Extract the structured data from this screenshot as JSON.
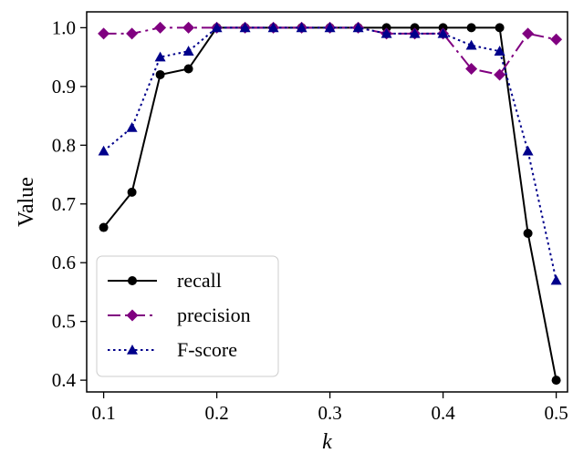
{
  "chart_data": {
    "type": "line",
    "xlabel": "k",
    "ylabel": "Value",
    "xlim": [
      0.085,
      0.51
    ],
    "ylim": [
      0.38,
      1.027
    ],
    "xticks": [
      0.1,
      0.2,
      0.3,
      0.4,
      0.5
    ],
    "xtick_labels": [
      "0.1",
      "0.2",
      "0.3",
      "0.4",
      "0.5"
    ],
    "yticks": [
      0.4,
      0.5,
      0.6,
      0.7,
      0.8,
      0.9,
      1.0
    ],
    "ytick_labels": [
      "0.4",
      "0.5",
      "0.6",
      "0.7",
      "0.8",
      "0.9",
      "1.0"
    ],
    "grid": false,
    "legend_position": "lower-left",
    "x": [
      0.1,
      0.125,
      0.15,
      0.175,
      0.2,
      0.225,
      0.25,
      0.275,
      0.3,
      0.325,
      0.35,
      0.375,
      0.4,
      0.425,
      0.45,
      0.475,
      0.5
    ],
    "series": [
      {
        "name": "recall",
        "color": "#000000",
        "linestyle": "solid",
        "marker": "circle",
        "values": [
          0.66,
          0.72,
          0.92,
          0.93,
          1.0,
          1.0,
          1.0,
          1.0,
          1.0,
          1.0,
          1.0,
          1.0,
          1.0,
          1.0,
          1.0,
          0.65,
          0.4
        ]
      },
      {
        "name": "precision",
        "color": "#800080",
        "linestyle": "dashdot",
        "marker": "diamond",
        "values": [
          0.99,
          0.99,
          1.0,
          1.0,
          1.0,
          1.0,
          1.0,
          1.0,
          1.0,
          1.0,
          0.99,
          0.99,
          0.99,
          0.93,
          0.92,
          0.99,
          0.98
        ]
      },
      {
        "name": "F-score",
        "color": "#00008b",
        "linestyle": "dotted",
        "marker": "triangle",
        "values": [
          0.79,
          0.83,
          0.95,
          0.96,
          1.0,
          1.0,
          1.0,
          1.0,
          1.0,
          1.0,
          0.99,
          0.99,
          0.99,
          0.97,
          0.96,
          0.79,
          0.57
        ]
      }
    ]
  }
}
